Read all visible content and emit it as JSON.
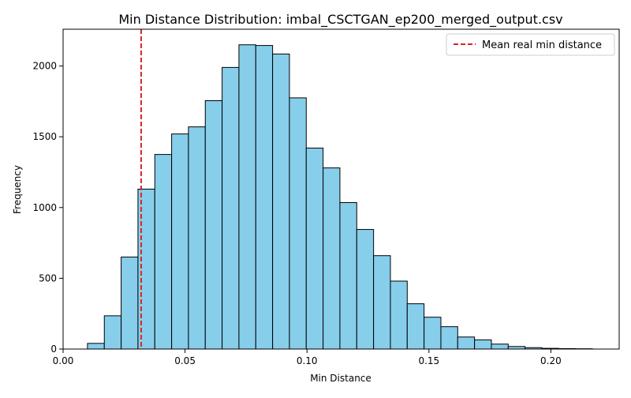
{
  "chart_data": {
    "type": "bar",
    "title": "Min Distance Distribution: imbal_CSCTGAN_ep200_merged_output.csv",
    "xlabel": "Min Distance",
    "ylabel": "Frequency",
    "xlim": [
      0.0,
      0.228
    ],
    "ylim": [
      0,
      2260
    ],
    "x_ticks": [
      0.0,
      0.05,
      0.1,
      0.15,
      0.2
    ],
    "x_tick_labels": [
      "0.00",
      "0.05",
      "0.10",
      "0.15",
      "0.20"
    ],
    "y_ticks": [
      0,
      500,
      1000,
      1500,
      2000
    ],
    "y_tick_labels": [
      "0",
      "500",
      "1000",
      "1500",
      "2000"
    ],
    "bin_edges": [
      0.01,
      0.0169,
      0.0238,
      0.0307,
      0.0376,
      0.0445,
      0.0514,
      0.0583,
      0.0652,
      0.0721,
      0.079,
      0.0859,
      0.0928,
      0.0997,
      0.1066,
      0.1135,
      0.1204,
      0.1273,
      0.1342,
      0.1411,
      0.148,
      0.1549,
      0.1618,
      0.1687,
      0.1756,
      0.1825,
      0.1894,
      0.1963,
      0.2032,
      0.2101,
      0.217
    ],
    "values": [
      40,
      235,
      650,
      1130,
      1375,
      1520,
      1570,
      1755,
      1990,
      2150,
      2145,
      2085,
      1775,
      1420,
      1280,
      1035,
      845,
      660,
      480,
      320,
      225,
      158,
      85,
      65,
      35,
      18,
      10,
      5,
      3,
      2
    ],
    "mean_line": {
      "x": 0.032,
      "label": "Mean real min distance",
      "color": "#d62728",
      "style": "dashed"
    },
    "bar_color": "#87ceeb",
    "edge_color": "#000000",
    "legend_position": "top-right",
    "grid": false
  }
}
